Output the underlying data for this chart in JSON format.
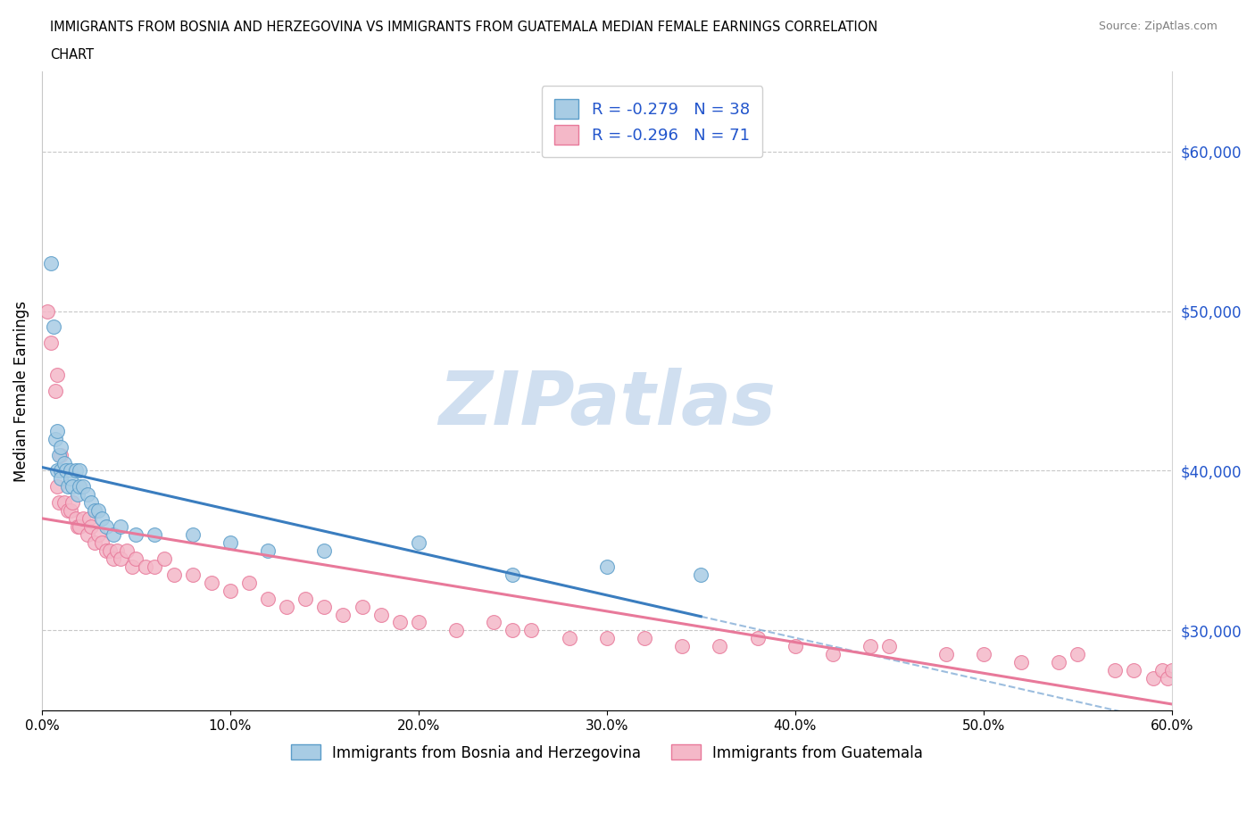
{
  "title_line1": "IMMIGRANTS FROM BOSNIA AND HERZEGOVINA VS IMMIGRANTS FROM GUATEMALA MEDIAN FEMALE EARNINGS CORRELATION",
  "title_line2": "CHART",
  "source": "Source: ZipAtlas.com",
  "ylabel": "Median Female Earnings",
  "xlim": [
    0.0,
    0.6
  ],
  "ylim": [
    25000,
    65000
  ],
  "yticks": [
    30000,
    40000,
    50000,
    60000
  ],
  "ytick_labels": [
    "$30,000",
    "$40,000",
    "$50,000",
    "$60,000"
  ],
  "xticks": [
    0.0,
    0.1,
    0.2,
    0.3,
    0.4,
    0.5,
    0.6
  ],
  "xtick_labels": [
    "0.0%",
    "10.0%",
    "20.0%",
    "30.0%",
    "40.0%",
    "50.0%",
    "60.0%"
  ],
  "blue_color": "#a8cce4",
  "pink_color": "#f4b8c8",
  "blue_edge": "#5b9dc9",
  "pink_edge": "#e8799a",
  "trend_blue": "#3a7dbf",
  "trend_pink": "#e8799a",
  "watermark": "ZIPatlas",
  "watermark_color": "#d0dff0",
  "legend_text_color": "#2255cc",
  "R_bosnia": -0.279,
  "N_bosnia": 38,
  "R_guatemala": -0.296,
  "N_guatemala": 71,
  "bosnia_x": [
    0.005,
    0.006,
    0.007,
    0.008,
    0.008,
    0.009,
    0.01,
    0.01,
    0.01,
    0.012,
    0.013,
    0.014,
    0.015,
    0.015,
    0.016,
    0.018,
    0.019,
    0.02,
    0.02,
    0.022,
    0.024,
    0.026,
    0.028,
    0.03,
    0.032,
    0.034,
    0.038,
    0.042,
    0.05,
    0.06,
    0.08,
    0.1,
    0.12,
    0.15,
    0.2,
    0.25,
    0.3,
    0.35
  ],
  "bosnia_y": [
    53000,
    49000,
    42000,
    42500,
    40000,
    41000,
    41500,
    40000,
    39500,
    40500,
    40000,
    39000,
    40000,
    39500,
    39000,
    40000,
    38500,
    40000,
    39000,
    39000,
    38500,
    38000,
    37500,
    37500,
    37000,
    36500,
    36000,
    36500,
    36000,
    36000,
    36000,
    35500,
    35000,
    35000,
    35500,
    33500,
    34000,
    33500
  ],
  "guatemala_x": [
    0.003,
    0.005,
    0.007,
    0.008,
    0.008,
    0.009,
    0.01,
    0.012,
    0.014,
    0.015,
    0.016,
    0.018,
    0.019,
    0.02,
    0.022,
    0.024,
    0.025,
    0.026,
    0.028,
    0.03,
    0.032,
    0.034,
    0.036,
    0.038,
    0.04,
    0.042,
    0.045,
    0.048,
    0.05,
    0.055,
    0.06,
    0.065,
    0.07,
    0.08,
    0.09,
    0.1,
    0.11,
    0.12,
    0.13,
    0.14,
    0.15,
    0.16,
    0.17,
    0.18,
    0.19,
    0.2,
    0.22,
    0.24,
    0.25,
    0.26,
    0.28,
    0.3,
    0.32,
    0.34,
    0.36,
    0.38,
    0.4,
    0.42,
    0.44,
    0.45,
    0.48,
    0.5,
    0.52,
    0.54,
    0.55,
    0.57,
    0.58,
    0.59,
    0.595,
    0.598,
    0.6
  ],
  "guatemala_y": [
    50000,
    48000,
    45000,
    46000,
    39000,
    38000,
    41000,
    38000,
    37500,
    37500,
    38000,
    37000,
    36500,
    36500,
    37000,
    36000,
    37000,
    36500,
    35500,
    36000,
    35500,
    35000,
    35000,
    34500,
    35000,
    34500,
    35000,
    34000,
    34500,
    34000,
    34000,
    34500,
    33500,
    33500,
    33000,
    32500,
    33000,
    32000,
    31500,
    32000,
    31500,
    31000,
    31500,
    31000,
    30500,
    30500,
    30000,
    30500,
    30000,
    30000,
    29500,
    29500,
    29500,
    29000,
    29000,
    29500,
    29000,
    28500,
    29000,
    29000,
    28500,
    28500,
    28000,
    28000,
    28500,
    27500,
    27500,
    27000,
    27500,
    27000,
    27500
  ]
}
